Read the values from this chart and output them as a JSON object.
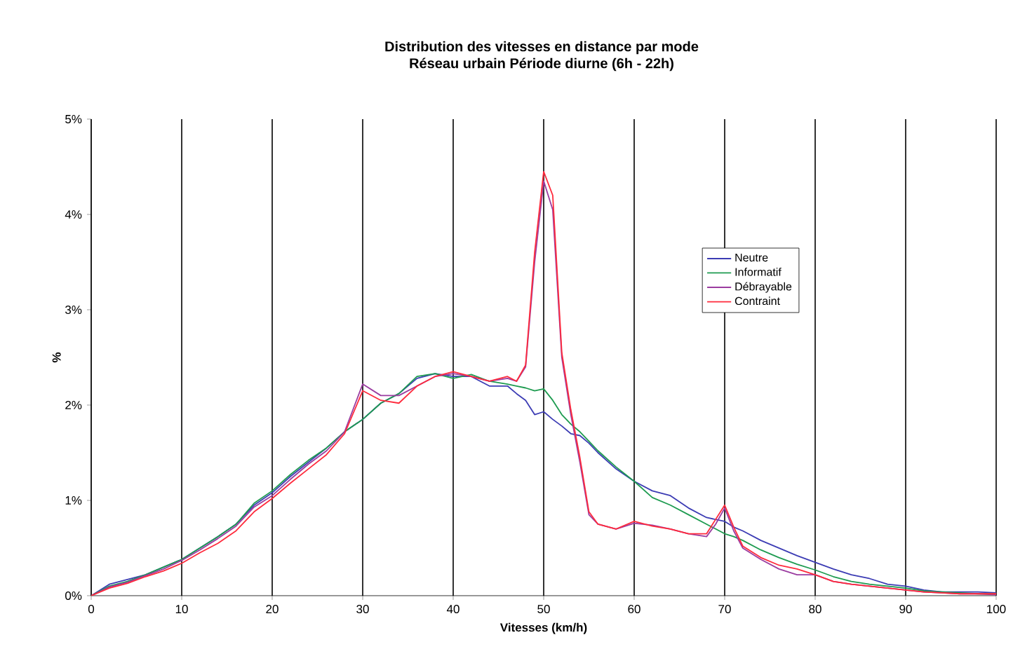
{
  "chart_data": {
    "type": "line",
    "title": "Distribution des vitesses en distance par mode",
    "subtitle": "Réseau urbain  Période diurne (6h - 22h)",
    "xlabel": "Vitesses (km/h)",
    "ylabel": "%",
    "x": [
      0,
      2,
      4,
      6,
      8,
      10,
      12,
      14,
      16,
      18,
      20,
      22,
      24,
      26,
      28,
      30,
      32,
      34,
      36,
      38,
      40,
      42,
      44,
      46,
      47,
      48,
      49,
      50,
      51,
      52,
      53,
      54,
      55,
      56,
      58,
      60,
      62,
      64,
      66,
      68,
      69,
      70,
      71,
      72,
      74,
      76,
      78,
      80,
      82,
      84,
      86,
      88,
      90,
      92,
      94,
      96,
      98,
      100
    ],
    "series": [
      {
        "name": "Neutre",
        "color": "#3c3cb4",
        "values": [
          0,
          0.12,
          0.17,
          0.22,
          0.3,
          0.38,
          0.5,
          0.62,
          0.75,
          0.95,
          1.08,
          1.25,
          1.4,
          1.55,
          1.72,
          1.85,
          2.02,
          2.12,
          2.28,
          2.33,
          2.3,
          2.3,
          2.2,
          2.2,
          2.12,
          2.05,
          1.9,
          1.93,
          1.85,
          1.78,
          1.7,
          1.68,
          1.6,
          1.5,
          1.33,
          1.2,
          1.1,
          1.05,
          0.92,
          0.82,
          0.8,
          0.78,
          0.72,
          0.68,
          0.58,
          0.5,
          0.42,
          0.35,
          0.28,
          0.22,
          0.18,
          0.12,
          0.1,
          0.06,
          0.04,
          0.04,
          0.04,
          0.03
        ]
      },
      {
        "name": "Informatif",
        "color": "#1e9b50",
        "values": [
          0,
          0.1,
          0.15,
          0.22,
          0.3,
          0.38,
          0.5,
          0.62,
          0.75,
          0.97,
          1.1,
          1.27,
          1.42,
          1.55,
          1.72,
          1.85,
          2.02,
          2.12,
          2.3,
          2.33,
          2.28,
          2.32,
          2.25,
          2.22,
          2.2,
          2.18,
          2.15,
          2.17,
          2.05,
          1.9,
          1.8,
          1.72,
          1.62,
          1.52,
          1.35,
          1.2,
          1.03,
          0.95,
          0.85,
          0.75,
          0.7,
          0.65,
          0.62,
          0.58,
          0.48,
          0.4,
          0.33,
          0.27,
          0.2,
          0.15,
          0.12,
          0.1,
          0.08,
          0.05,
          0.04,
          0.03,
          0.02,
          0.02
        ]
      },
      {
        "name": "Débrayable",
        "color": "#9b3ca0",
        "values": [
          0,
          0.09,
          0.14,
          0.21,
          0.28,
          0.37,
          0.48,
          0.6,
          0.73,
          0.93,
          1.05,
          1.22,
          1.38,
          1.52,
          1.72,
          2.22,
          2.1,
          2.1,
          2.2,
          2.3,
          2.33,
          2.3,
          2.25,
          2.28,
          2.25,
          2.4,
          3.5,
          4.35,
          4.05,
          2.5,
          1.9,
          1.4,
          0.85,
          0.75,
          0.7,
          0.76,
          0.74,
          0.7,
          0.65,
          0.62,
          0.75,
          0.92,
          0.68,
          0.5,
          0.38,
          0.28,
          0.22,
          0.22,
          0.15,
          0.12,
          0.1,
          0.08,
          0.06,
          0.04,
          0.03,
          0.02,
          0.02,
          0.01
        ]
      },
      {
        "name": "Contraint",
        "color": "#ff2a3c",
        "values": [
          0,
          0.08,
          0.13,
          0.2,
          0.26,
          0.34,
          0.45,
          0.55,
          0.68,
          0.88,
          1.02,
          1.18,
          1.33,
          1.48,
          1.7,
          2.15,
          2.05,
          2.02,
          2.2,
          2.3,
          2.35,
          2.3,
          2.25,
          2.3,
          2.25,
          2.42,
          3.6,
          4.45,
          4.2,
          2.55,
          1.95,
          1.45,
          0.88,
          0.75,
          0.7,
          0.78,
          0.73,
          0.7,
          0.65,
          0.65,
          0.8,
          0.95,
          0.72,
          0.52,
          0.4,
          0.32,
          0.28,
          0.22,
          0.15,
          0.12,
          0.1,
          0.08,
          0.06,
          0.04,
          0.03,
          0.02,
          0.02,
          0.02
        ]
      }
    ],
    "xlim": [
      0,
      100
    ],
    "xticks": [
      0,
      10,
      20,
      30,
      40,
      50,
      60,
      70,
      80,
      90,
      100
    ],
    "ylim": [
      0,
      5
    ],
    "yticks": [
      {
        "value": 0,
        "label": "0%"
      },
      {
        "value": 1,
        "label": "1%"
      },
      {
        "value": 2,
        "label": "2%"
      },
      {
        "value": 3,
        "label": "3%"
      },
      {
        "value": 4,
        "label": "4%"
      },
      {
        "value": 5,
        "label": "5%"
      }
    ],
    "grid": "x",
    "legend": "right",
    "marker": "none",
    "line_style": "solid"
  }
}
